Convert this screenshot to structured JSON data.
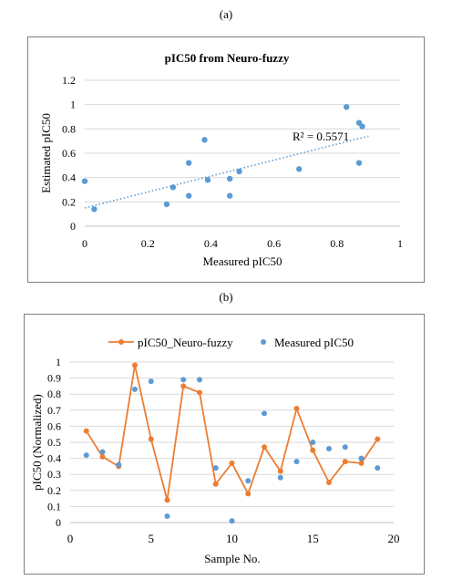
{
  "panels": {
    "a": "(a)",
    "b": "(b)"
  },
  "chart_data": [
    {
      "type": "scatter",
      "title": "pIC50 from Neuro-fuzzy",
      "xlabel": "Measured pIC50",
      "ylabel": "Estimated pIC50",
      "xlim": [
        0,
        1
      ],
      "ylim": [
        0,
        1.2
      ],
      "xticks": [
        "0",
        "0.2",
        "0.4",
        "0.6",
        "0.8",
        "1"
      ],
      "yticks": [
        "0",
        "0.2",
        "0.4",
        "0.6",
        "0.8",
        "1",
        "1.2"
      ],
      "grid": "horizontal",
      "colors": {
        "points": "#5b9bd5",
        "trendline": "#5b9bd5"
      },
      "points": [
        [
          0.0,
          0.37
        ],
        [
          0.03,
          0.14
        ],
        [
          0.26,
          0.18
        ],
        [
          0.28,
          0.32
        ],
        [
          0.33,
          0.25
        ],
        [
          0.33,
          0.52
        ],
        [
          0.38,
          0.71
        ],
        [
          0.39,
          0.38
        ],
        [
          0.46,
          0.25
        ],
        [
          0.46,
          0.39
        ],
        [
          0.49,
          0.45
        ],
        [
          0.68,
          0.47
        ],
        [
          0.83,
          0.98
        ],
        [
          0.87,
          0.85
        ],
        [
          0.88,
          0.82
        ],
        [
          0.87,
          0.52
        ]
      ],
      "trendline": {
        "type": "linear",
        "x": [
          0,
          0.9
        ],
        "y": [
          0.15,
          0.74
        ],
        "style": "dotted"
      },
      "annotation": "R² = 0.5571"
    },
    {
      "type": "line",
      "xlabel": "Sample No.",
      "ylabel": "pIC50 (Normalized)",
      "xlim": [
        0,
        20
      ],
      "ylim": [
        0,
        1
      ],
      "xticks": [
        "0",
        "5",
        "10",
        "15",
        "20"
      ],
      "yticks": [
        "0",
        "0.1",
        "0.2",
        "0.3",
        "0.4",
        "0.5",
        "0.6",
        "0.7",
        "0.8",
        "0.9",
        "1"
      ],
      "grid": "horizontal",
      "legend": "top",
      "x": [
        1,
        2,
        3,
        4,
        5,
        6,
        7,
        8,
        9,
        10,
        11,
        12,
        13,
        14,
        15,
        16,
        17,
        18,
        19
      ],
      "series": [
        {
          "name": "pIC50_Neuro-fuzzy",
          "style": "line-markers",
          "color": "#ed7d31",
          "values": [
            0.57,
            0.41,
            0.35,
            0.98,
            0.52,
            0.14,
            0.85,
            0.81,
            0.24,
            0.37,
            0.18,
            0.47,
            0.32,
            0.71,
            0.45,
            0.25,
            0.38,
            0.37,
            0.52
          ]
        },
        {
          "name": "Measured pIC50",
          "style": "markers",
          "color": "#5b9bd5",
          "values": [
            0.42,
            0.44,
            0.36,
            0.83,
            0.88,
            0.04,
            0.89,
            0.89,
            0.34,
            0.01,
            0.26,
            0.68,
            0.28,
            0.38,
            0.5,
            0.46,
            0.47,
            0.4,
            0.34
          ]
        }
      ]
    }
  ]
}
